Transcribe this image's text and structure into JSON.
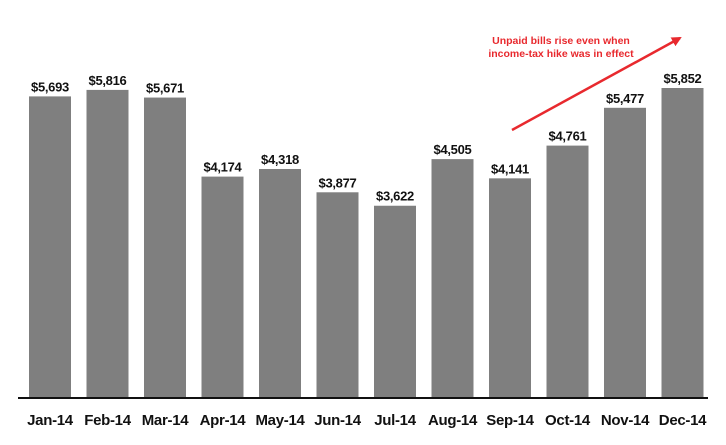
{
  "chart_data": {
    "type": "bar",
    "categories": [
      "Jan-14",
      "Feb-14",
      "Mar-14",
      "Apr-14",
      "May-14",
      "Jun-14",
      "Jul-14",
      "Aug-14",
      "Sep-14",
      "Oct-14",
      "Nov-14",
      "Dec-14"
    ],
    "values": [
      5693,
      5816,
      5671,
      4174,
      4318,
      3877,
      3622,
      4505,
      4141,
      4761,
      5477,
      5852
    ],
    "value_labels": [
      "$5,693",
      "$5,816",
      "$5,671",
      "$4,174",
      "$4,318",
      "$3,877",
      "$3,622",
      "$4,505",
      "$4,141",
      "$4,761",
      "$5,477",
      "$5,852"
    ],
    "title": "",
    "xlabel": "",
    "ylabel": "",
    "ylim": [
      0,
      6500
    ],
    "grid": false,
    "bar_color": "#7f7f7f",
    "annotation": {
      "lines": [
        "Unpaid bills rise even when",
        "income-tax hike was in effect"
      ],
      "color": "#e8292e",
      "arrow": "up-right"
    }
  }
}
